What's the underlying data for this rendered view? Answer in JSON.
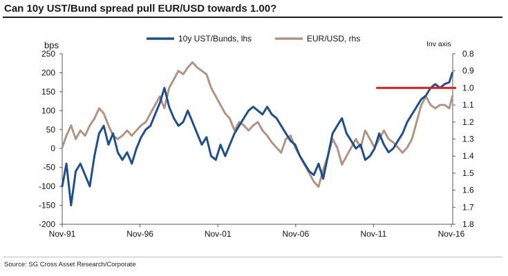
{
  "header": {
    "title": "Can 10y UST/Bund spread pull EUR/USD towards 1.00?"
  },
  "footer": {
    "source": "Source: SG Cross Asset Research/Corporate"
  },
  "chart_data": {
    "type": "line",
    "ylabel": "bps",
    "y2label": "Inv axis",
    "ylim": [
      -200,
      250
    ],
    "yticks": [
      -200,
      -150,
      -100,
      -50,
      0,
      50,
      100,
      150,
      200,
      250
    ],
    "y2lim_inverted": [
      0.8,
      1.8
    ],
    "y2ticks": [
      "0.8",
      "0.9",
      "1.0",
      "1.1",
      "1.2",
      "1.3",
      "1.4",
      "1.5",
      "1.6",
      "1.7",
      "1.8"
    ],
    "xlim": [
      1991.83,
      2016.92
    ],
    "xticks": [
      {
        "label": "Nov-91",
        "x": 1991.83
      },
      {
        "label": "Nov-96",
        "x": 1996.83
      },
      {
        "label": "Nov-01",
        "x": 2001.83
      },
      {
        "label": "Nov-06",
        "x": 2006.83
      },
      {
        "label": "Nov-11",
        "x": 2011.83
      },
      {
        "label": "Nov-16",
        "x": 2016.83
      }
    ],
    "legend_position": "top",
    "series": [
      {
        "name": "10y UST/Bunds, lhs",
        "color": "#1f4e8c",
        "axis": "left",
        "x": [
          1991.83,
          1992.1,
          1992.4,
          1992.7,
          1993.0,
          1993.3,
          1993.6,
          1993.9,
          1994.2,
          1994.5,
          1994.8,
          1995.1,
          1995.4,
          1995.7,
          1996.0,
          1996.3,
          1996.6,
          1996.9,
          1997.2,
          1997.5,
          1997.8,
          1998.1,
          1998.4,
          1998.7,
          1999.0,
          1999.3,
          1999.6,
          1999.9,
          2000.2,
          2000.5,
          2000.8,
          2001.1,
          2001.4,
          2001.7,
          2002.0,
          2002.3,
          2002.6,
          2002.9,
          2003.2,
          2003.5,
          2003.8,
          2004.1,
          2004.4,
          2004.7,
          2005.0,
          2005.3,
          2005.6,
          2005.9,
          2006.2,
          2006.5,
          2006.8,
          2007.1,
          2007.4,
          2007.7,
          2008.0,
          2008.3,
          2008.6,
          2008.9,
          2009.2,
          2009.5,
          2009.8,
          2010.1,
          2010.4,
          2010.7,
          2011.0,
          2011.3,
          2011.6,
          2011.9,
          2012.2,
          2012.5,
          2012.8,
          2013.1,
          2013.4,
          2013.7,
          2014.0,
          2014.3,
          2014.6,
          2014.9,
          2015.2,
          2015.5,
          2015.8,
          2016.1,
          2016.4,
          2016.7,
          2016.9
        ],
        "values": [
          -100,
          -40,
          -150,
          -60,
          -40,
          -70,
          -100,
          -20,
          40,
          60,
          10,
          40,
          -10,
          -30,
          -10,
          -40,
          0,
          30,
          50,
          60,
          90,
          120,
          160,
          110,
          80,
          60,
          70,
          100,
          70,
          40,
          10,
          30,
          -20,
          -30,
          10,
          -20,
          10,
          40,
          60,
          80,
          100,
          110,
          100,
          90,
          110,
          90,
          80,
          60,
          40,
          20,
          10,
          -20,
          -40,
          -60,
          -70,
          -40,
          -80,
          -20,
          40,
          60,
          80,
          40,
          20,
          0,
          10,
          -30,
          -20,
          0,
          40,
          10,
          -10,
          0,
          20,
          40,
          70,
          90,
          110,
          130,
          140,
          160,
          170,
          160,
          170,
          175,
          200
        ]
      },
      {
        "name": "EUR/USD, rhs",
        "color": "#b09382",
        "axis": "right",
        "x": [
          1991.83,
          1992.1,
          1992.4,
          1992.7,
          1993.0,
          1993.3,
          1993.6,
          1993.9,
          1994.2,
          1994.5,
          1994.8,
          1995.1,
          1995.4,
          1995.7,
          1996.0,
          1996.3,
          1996.6,
          1996.9,
          1997.2,
          1997.5,
          1997.8,
          1998.1,
          1998.4,
          1998.7,
          1999.0,
          1999.3,
          1999.6,
          1999.9,
          2000.2,
          2000.5,
          2000.8,
          2001.1,
          2001.4,
          2001.7,
          2002.0,
          2002.3,
          2002.6,
          2002.9,
          2003.2,
          2003.5,
          2003.8,
          2004.1,
          2004.4,
          2004.7,
          2005.0,
          2005.3,
          2005.6,
          2005.9,
          2006.2,
          2006.5,
          2006.8,
          2007.1,
          2007.4,
          2007.7,
          2008.0,
          2008.3,
          2008.6,
          2008.9,
          2009.2,
          2009.5,
          2009.8,
          2010.1,
          2010.4,
          2010.7,
          2011.0,
          2011.3,
          2011.6,
          2011.9,
          2012.2,
          2012.5,
          2012.8,
          2013.1,
          2013.4,
          2013.7,
          2014.0,
          2014.3,
          2014.6,
          2014.9,
          2015.2,
          2015.5,
          2015.8,
          2016.1,
          2016.4,
          2016.7,
          2016.9
        ],
        "values": [
          1.35,
          1.28,
          1.22,
          1.3,
          1.25,
          1.28,
          1.22,
          1.18,
          1.12,
          1.15,
          1.22,
          1.28,
          1.3,
          1.28,
          1.25,
          1.28,
          1.25,
          1.22,
          1.2,
          1.15,
          1.1,
          1.05,
          1.12,
          1.0,
          0.95,
          0.9,
          0.92,
          0.88,
          0.85,
          0.88,
          0.9,
          0.92,
          1.0,
          1.05,
          1.1,
          1.15,
          1.18,
          1.25,
          1.2,
          1.22,
          1.25,
          1.22,
          1.2,
          1.25,
          1.28,
          1.32,
          1.35,
          1.38,
          1.3,
          1.28,
          1.35,
          1.4,
          1.45,
          1.5,
          1.55,
          1.58,
          1.48,
          1.4,
          1.3,
          1.35,
          1.45,
          1.4,
          1.35,
          1.3,
          1.35,
          1.25,
          1.3,
          1.35,
          1.3,
          1.25,
          1.3,
          1.32,
          1.35,
          1.38,
          1.35,
          1.3,
          1.2,
          1.1,
          1.05,
          1.1,
          1.12,
          1.1,
          1.1,
          1.12,
          1.05
        ]
      }
    ],
    "annotations": [
      {
        "type": "horizontal-line",
        "axis": "right",
        "value": 1.0,
        "x_start": 2012.0,
        "x_end": 2016.92,
        "color": "#e02020"
      }
    ]
  }
}
